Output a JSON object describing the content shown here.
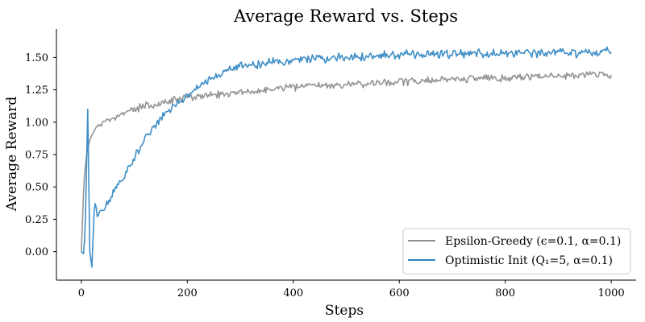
{
  "chart_data": {
    "type": "line",
    "title": "Average Reward vs. Steps",
    "xlabel": "Steps",
    "ylabel": "Average Reward",
    "xlim": [
      -47,
      1047
    ],
    "ylim": [
      -0.22,
      1.72
    ],
    "xticks": [
      0,
      200,
      400,
      600,
      800,
      1000
    ],
    "yticks": [
      0.0,
      0.25,
      0.5,
      0.75,
      1.0,
      1.25,
      1.5
    ],
    "ytick_labels": [
      "0.00",
      "0.25",
      "0.50",
      "0.75",
      "1.00",
      "1.25",
      "1.50"
    ],
    "grid": false,
    "legend_position": "lower-right",
    "series": [
      {
        "name": "Epsilon-Greedy (ϵ=0.1, α=0.1)",
        "color": "#8c8c8c",
        "x": [
          0,
          5,
          10,
          15,
          20,
          30,
          40,
          60,
          80,
          100,
          130,
          160,
          200,
          250,
          300,
          350,
          400,
          450,
          500,
          550,
          600,
          650,
          700,
          750,
          800,
          850,
          900,
          950,
          1000
        ],
        "y": [
          0.0,
          0.55,
          0.75,
          0.85,
          0.9,
          0.97,
          1.0,
          1.03,
          1.07,
          1.1,
          1.13,
          1.16,
          1.19,
          1.21,
          1.23,
          1.25,
          1.27,
          1.28,
          1.29,
          1.3,
          1.31,
          1.32,
          1.33,
          1.34,
          1.34,
          1.35,
          1.36,
          1.37,
          1.36
        ]
      },
      {
        "name": "Optimistic Init (Q₁=5, α=0.1)",
        "color": "#2f86c1",
        "x": [
          0,
          5,
          8,
          12,
          16,
          20,
          25,
          30,
          40,
          50,
          60,
          80,
          100,
          120,
          140,
          160,
          180,
          200,
          220,
          240,
          260,
          280,
          300,
          350,
          400,
          450,
          500,
          550,
          600,
          650,
          700,
          750,
          800,
          850,
          900,
          950,
          1000
        ],
        "y": [
          0.0,
          -0.02,
          0.3,
          1.1,
          0.0,
          -0.12,
          0.4,
          0.3,
          0.32,
          0.38,
          0.45,
          0.58,
          0.72,
          0.87,
          0.98,
          1.07,
          1.14,
          1.2,
          1.27,
          1.32,
          1.37,
          1.41,
          1.43,
          1.46,
          1.48,
          1.49,
          1.5,
          1.51,
          1.52,
          1.52,
          1.53,
          1.53,
          1.53,
          1.53,
          1.54,
          1.53,
          1.56
        ]
      }
    ]
  }
}
